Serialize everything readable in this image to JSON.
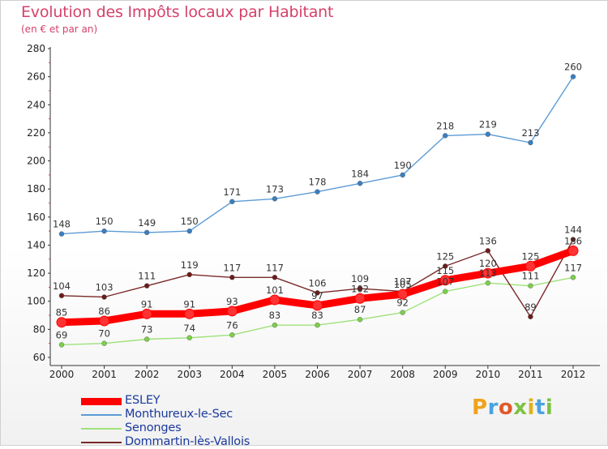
{
  "title": "Evolution des Impôts locaux par Habitant",
  "subtitle": "(en € et par an)",
  "logo_text": "Proxiti",
  "logo_colors": [
    "#f0a21b",
    "#4aa3e0",
    "#e05a2a",
    "#7cc242",
    "#e0b21a",
    "#4aa3e0",
    "#7cc242"
  ],
  "chart_data": {
    "type": "line",
    "x": [
      "2000",
      "2001",
      "2002",
      "2003",
      "2004",
      "2005",
      "2006",
      "2007",
      "2008",
      "2009",
      "2010",
      "2011",
      "2012"
    ],
    "ylim": [
      60,
      280
    ],
    "yticks": [
      "60",
      "80",
      "100",
      "120",
      "140",
      "160",
      "180",
      "200",
      "220",
      "240",
      "260",
      "280"
    ],
    "grid": false,
    "legend_position": "bottom-left",
    "series": [
      {
        "name": "Monthureux-le-Sec",
        "color": "#5b9bd5",
        "marker": "#3a7fc0",
        "values": [
          148,
          150,
          149,
          150,
          171,
          173,
          178,
          184,
          190,
          218,
          219,
          213,
          260
        ],
        "labels": [
          "148",
          "150",
          "149",
          "150",
          "171",
          "173",
          "178",
          "184",
          "190",
          "218",
          "219",
          "213",
          "260"
        ]
      },
      {
        "name": "Senonges",
        "color": "#9ee27a",
        "marker": "#7ccf4a",
        "values": [
          69,
          70,
          73,
          74,
          76,
          83,
          83,
          87,
          92,
          107,
          113,
          111,
          117
        ],
        "labels": [
          "69",
          "70",
          "73",
          "74",
          "76",
          "83",
          "83",
          "87",
          "92",
          "107",
          "113",
          "111",
          "117"
        ]
      },
      {
        "name": "Dommartin-lès-Vallois",
        "color": "#7a2a2a",
        "marker": "#6b1c1c",
        "values": [
          104,
          103,
          111,
          119,
          117,
          117,
          106,
          109,
          107,
          125,
          136,
          89,
          144
        ],
        "labels": [
          "104",
          "103",
          "111",
          "119",
          "117",
          "117",
          "106",
          "109",
          "107",
          "125",
          "136",
          "89",
          "144"
        ]
      },
      {
        "name": "ESLEY",
        "color": "#ff0000",
        "marker": "#ff3333",
        "values": [
          85,
          86,
          91,
          91,
          93,
          101,
          97,
          102,
          105,
          115,
          120,
          125,
          136
        ],
        "labels": [
          "85",
          "86",
          "91",
          "91",
          "93",
          "101",
          "97",
          "102",
          "105",
          "115",
          "120",
          "125",
          "136"
        ]
      }
    ]
  },
  "legend": [
    {
      "label": "ESLEY",
      "color": "#ff0000",
      "thick": true
    },
    {
      "label": "Monthureux-le-Sec",
      "color": "#5b9bd5",
      "thick": false
    },
    {
      "label": "Senonges",
      "color": "#9ee27a",
      "thick": false
    },
    {
      "label": "Dommartin-lès-Vallois",
      "color": "#7a2a2a",
      "thick": false
    }
  ]
}
